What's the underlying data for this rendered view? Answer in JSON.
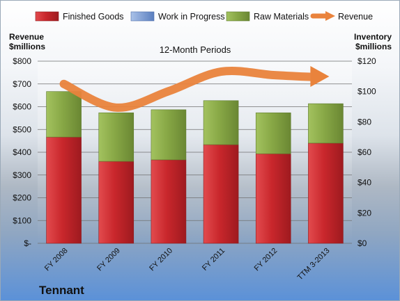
{
  "company": "Tennant",
  "chart_data": {
    "type": "bar",
    "subtitle": "12-Month Periods",
    "categories": [
      "FY 2008",
      "FY 2009",
      "FY 2010",
      "FY 2011",
      "FY 2012",
      "TTM 3-2013"
    ],
    "series": [
      {
        "name": "Finished Goods",
        "color": "#c0262b",
        "values": [
          70,
          54,
          55,
          65,
          59,
          66
        ]
      },
      {
        "name": "Work in Progress",
        "color": "#6e8fc7",
        "values": [
          0,
          0,
          0,
          0,
          0,
          0
        ]
      },
      {
        "name": "Raw Materials",
        "color": "#8aab47",
        "values": [
          30,
          32,
          33,
          29,
          27,
          26
        ]
      }
    ],
    "line_series": {
      "name": "Revenue",
      "color": "#e9833c",
      "values": [
        700,
        596,
        668,
        754,
        739,
        733
      ]
    },
    "left_axis": {
      "label_line1": "Revenue",
      "label_line2": "$millions",
      "ylim": [
        0,
        800
      ],
      "ticks": [
        "$-",
        "$100",
        "$200",
        "$300",
        "$400",
        "$500",
        "$600",
        "$700",
        "$800"
      ]
    },
    "right_axis": {
      "label_line1": "Inventory",
      "label_line2": "$millions",
      "ylim": [
        0,
        120
      ],
      "ticks": [
        "$0",
        "$20",
        "$40",
        "$60",
        "$80",
        "$100",
        "$120"
      ]
    },
    "legend_position": "top"
  }
}
